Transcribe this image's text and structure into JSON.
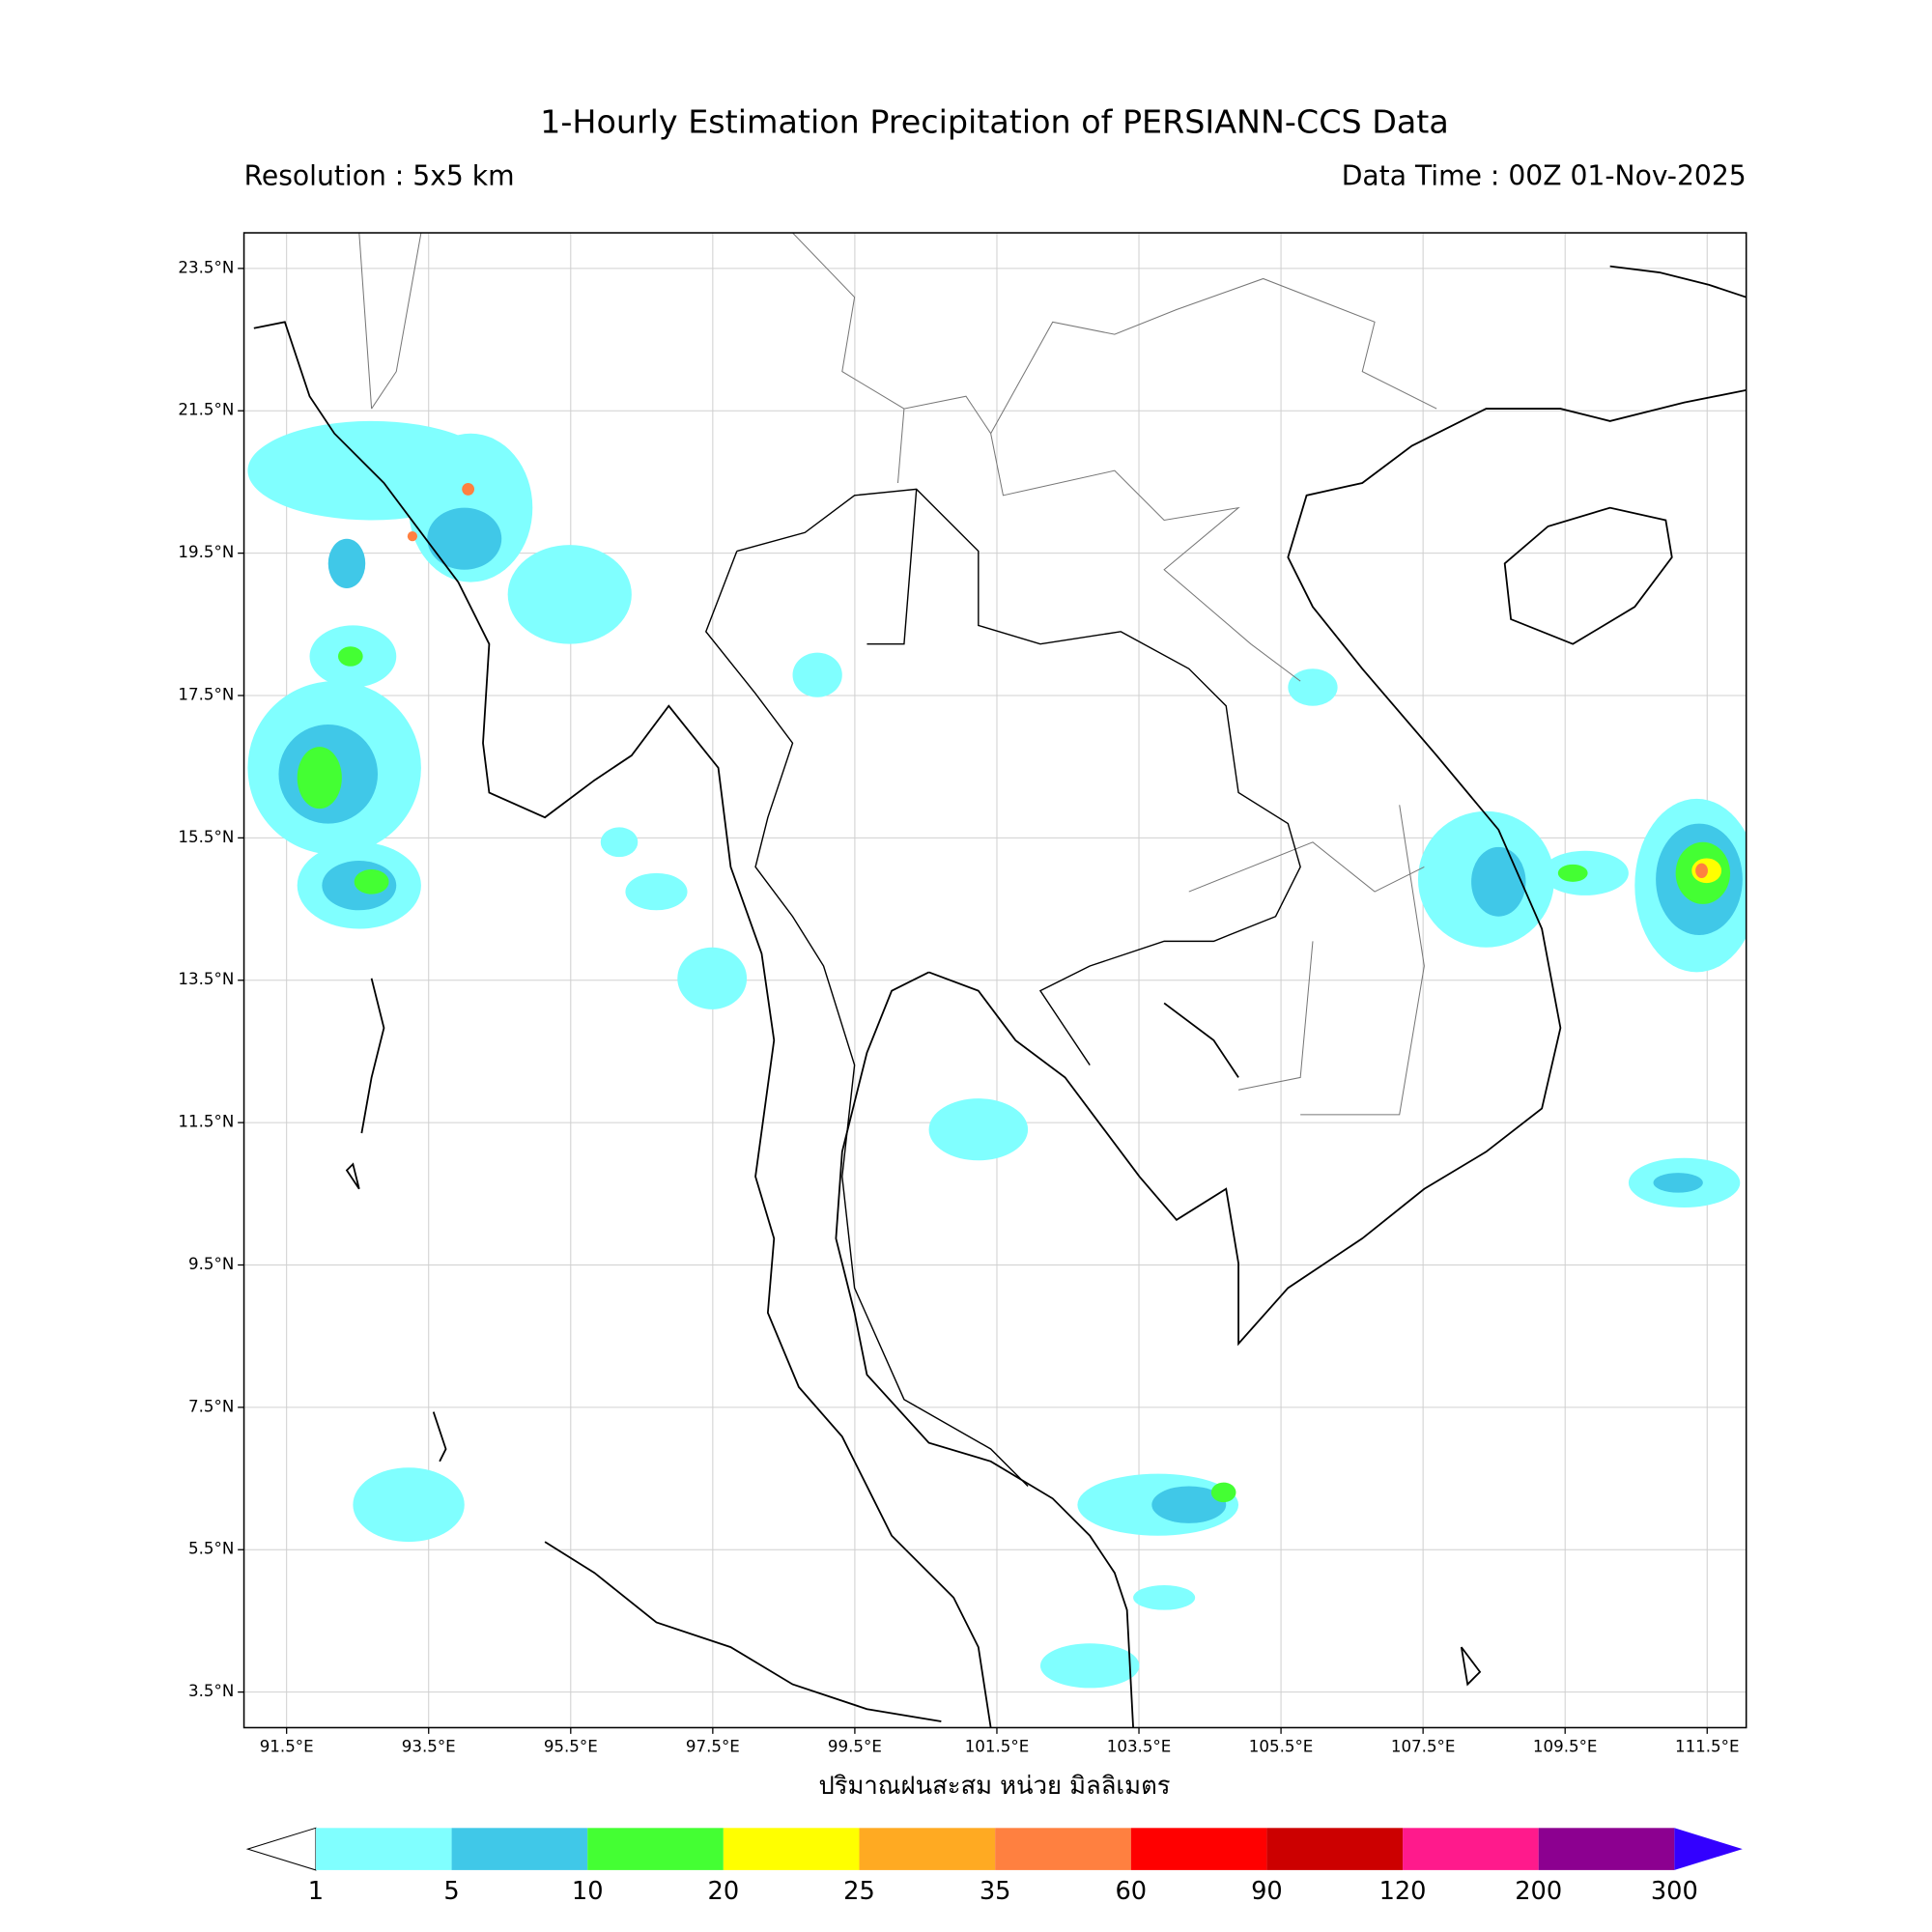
{
  "map": {
    "title": "1-Hourly Estimation Precipitation of PERSIANN-CCS Data",
    "resolution": "Resolution : 5x5 km",
    "data_time": "Data Time : 00Z 01-Nov-2025",
    "xlabel": "ปริมาณฝนสะสม หน่วย มิลลิเมตร",
    "xlim": [
      90.9,
      112.05
    ],
    "ylim": [
      3.0,
      24.0
    ],
    "grid": true,
    "xticks": [
      {
        "value": 91.5,
        "label": "91.5°E"
      },
      {
        "value": 93.5,
        "label": "93.5°E"
      },
      {
        "value": 95.5,
        "label": "95.5°E"
      },
      {
        "value": 97.5,
        "label": "97.5°E"
      },
      {
        "value": 99.5,
        "label": "99.5°E"
      },
      {
        "value": 101.5,
        "label": "101.5°E"
      },
      {
        "value": 103.5,
        "label": "103.5°E"
      },
      {
        "value": 105.5,
        "label": "105.5°E"
      },
      {
        "value": 107.5,
        "label": "107.5°E"
      },
      {
        "value": 109.5,
        "label": "109.5°E"
      },
      {
        "value": 111.5,
        "label": "111.5°E"
      }
    ],
    "yticks": [
      {
        "value": 3.5,
        "label": "3.5°N"
      },
      {
        "value": 5.5,
        "label": "5.5°N"
      },
      {
        "value": 7.5,
        "label": "7.5°N"
      },
      {
        "value": 9.5,
        "label": "9.5°N"
      },
      {
        "value": 11.5,
        "label": "11.5°N"
      },
      {
        "value": 13.5,
        "label": "13.5°N"
      },
      {
        "value": 15.5,
        "label": "15.5°N"
      },
      {
        "value": 17.5,
        "label": "17.5°N"
      },
      {
        "value": 19.5,
        "label": "19.5°N"
      },
      {
        "value": 21.5,
        "label": "21.5°N"
      },
      {
        "value": 23.5,
        "label": "23.5°N"
      }
    ],
    "colorbar": {
      "levels": [
        1,
        5,
        10,
        20,
        25,
        35,
        60,
        90,
        120,
        200,
        300
      ],
      "colors": [
        "#80ffff",
        "#40c8e8",
        "#44ff33",
        "#ffff00",
        "#ffaa22",
        "#ff8040",
        "#ff0000",
        "#cc0000",
        "#ff1a8c",
        "#8c0090"
      ],
      "under_color": "#ffffff",
      "over_color": "#3300ff"
    }
  }
}
